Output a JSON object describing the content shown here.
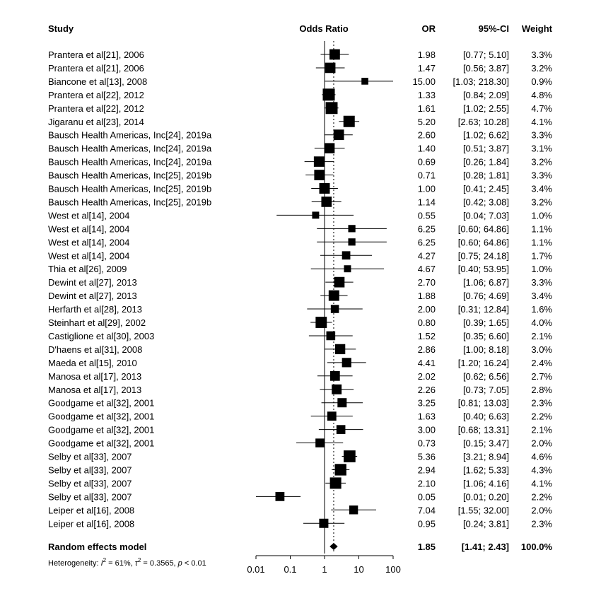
{
  "chart_data": {
    "type": "forest",
    "headers": {
      "study": "Study",
      "effect": "Odds Ratio",
      "or": "OR",
      "ci": "95%-CI",
      "weight": "Weight"
    },
    "x_scale": "log",
    "x_ticks": [
      0.01,
      0.1,
      1,
      10,
      100
    ],
    "x_tick_labels": [
      "0.01",
      "0.1",
      "1",
      "10",
      "100"
    ],
    "null_line": 1,
    "studies": [
      {
        "label": "Prantera et al[21], 2006",
        "or": 1.98,
        "lo": 0.77,
        "hi": 5.1,
        "or_text": "1.98",
        "ci_text": "[0.77;  5.10]",
        "weight": "3.3%",
        "w": 3.3
      },
      {
        "label": "Prantera et al[21], 2006",
        "or": 1.47,
        "lo": 0.56,
        "hi": 3.87,
        "or_text": "1.47",
        "ci_text": "[0.56;  3.87]",
        "weight": "3.2%",
        "w": 3.2
      },
      {
        "label": "Biancone et al[13], 2008",
        "or": 15.0,
        "lo": 1.03,
        "hi": 218.3,
        "or_text": "15.00",
        "ci_text": "[1.03; 218.30]",
        "weight": "0.9%",
        "w": 0.9
      },
      {
        "label": "Prantera et al[22], 2012",
        "or": 1.33,
        "lo": 0.84,
        "hi": 2.09,
        "or_text": "1.33",
        "ci_text": "[0.84;  2.09]",
        "weight": "4.8%",
        "w": 4.8
      },
      {
        "label": "Prantera et al[22], 2012",
        "or": 1.61,
        "lo": 1.02,
        "hi": 2.55,
        "or_text": "1.61",
        "ci_text": "[1.02;  2.55]",
        "weight": "4.7%",
        "w": 4.7
      },
      {
        "label": "Jigaranu et al[23], 2014",
        "or": 5.2,
        "lo": 2.63,
        "hi": 10.28,
        "or_text": "5.20",
        "ci_text": "[2.63; 10.28]",
        "weight": "4.1%",
        "w": 4.1
      },
      {
        "label": "Bausch Health Americas, Inc[24], 2019a",
        "or": 2.6,
        "lo": 1.02,
        "hi": 6.62,
        "or_text": "2.60",
        "ci_text": "[1.02;  6.62]",
        "weight": "3.3%",
        "w": 3.3
      },
      {
        "label": "Bausch Health Americas, Inc[24], 2019a",
        "or": 1.4,
        "lo": 0.51,
        "hi": 3.87,
        "or_text": "1.40",
        "ci_text": "[0.51;  3.87]",
        "weight": "3.1%",
        "w": 3.1
      },
      {
        "label": "Bausch Health Americas, Inc[24], 2019a",
        "or": 0.69,
        "lo": 0.26,
        "hi": 1.84,
        "or_text": "0.69",
        "ci_text": "[0.26;  1.84]",
        "weight": "3.2%",
        "w": 3.2
      },
      {
        "label": "Bausch Health Americas, Inc[25], 2019b",
        "or": 0.71,
        "lo": 0.28,
        "hi": 1.81,
        "or_text": "0.71",
        "ci_text": "[0.28;  1.81]",
        "weight": "3.3%",
        "w": 3.3
      },
      {
        "label": "Bausch Health Americas, Inc[25], 2019b",
        "or": 1.0,
        "lo": 0.41,
        "hi": 2.45,
        "or_text": "1.00",
        "ci_text": "[0.41;  2.45]",
        "weight": "3.4%",
        "w": 3.4
      },
      {
        "label": "Bausch Health Americas, Inc[25], 2019b",
        "or": 1.14,
        "lo": 0.42,
        "hi": 3.08,
        "or_text": "1.14",
        "ci_text": "[0.42;  3.08]",
        "weight": "3.2%",
        "w": 3.2
      },
      {
        "label": "West et al[14], 2004",
        "or": 0.55,
        "lo": 0.04,
        "hi": 7.03,
        "or_text": "0.55",
        "ci_text": "[0.04;  7.03]",
        "weight": "1.0%",
        "w": 1.0
      },
      {
        "label": "West et al[14], 2004",
        "or": 6.25,
        "lo": 0.6,
        "hi": 64.86,
        "or_text": "6.25",
        "ci_text": "[0.60; 64.86]",
        "weight": "1.1%",
        "w": 1.1
      },
      {
        "label": "West et al[14], 2004",
        "or": 6.25,
        "lo": 0.6,
        "hi": 64.86,
        "or_text": "6.25",
        "ci_text": "[0.60; 64.86]",
        "weight": "1.1%",
        "w": 1.1
      },
      {
        "label": "West et al[14], 2004",
        "or": 4.27,
        "lo": 0.75,
        "hi": 24.18,
        "or_text": "4.27",
        "ci_text": "[0.75; 24.18]",
        "weight": "1.7%",
        "w": 1.7
      },
      {
        "label": "Thia et al[26], 2009",
        "or": 4.67,
        "lo": 0.4,
        "hi": 53.95,
        "or_text": "4.67",
        "ci_text": "[0.40; 53.95]",
        "weight": "1.0%",
        "w": 1.0
      },
      {
        "label": "Dewint et al[27], 2013",
        "or": 2.7,
        "lo": 1.06,
        "hi": 6.87,
        "or_text": "2.70",
        "ci_text": "[1.06;  6.87]",
        "weight": "3.3%",
        "w": 3.3
      },
      {
        "label": "Dewint et al[27], 2013",
        "or": 1.88,
        "lo": 0.76,
        "hi": 4.69,
        "or_text": "1.88",
        "ci_text": "[0.76;  4.69]",
        "weight": "3.4%",
        "w": 3.4
      },
      {
        "label": "Herfarth et al[28], 2013",
        "or": 2.0,
        "lo": 0.31,
        "hi": 12.84,
        "or_text": "2.00",
        "ci_text": "[0.31; 12.84]",
        "weight": "1.6%",
        "w": 1.6
      },
      {
        "label": "Steinhart et al[29], 2002",
        "or": 0.8,
        "lo": 0.39,
        "hi": 1.65,
        "or_text": "0.80",
        "ci_text": "[0.39;  1.65]",
        "weight": "4.0%",
        "w": 4.0
      },
      {
        "label": "Castiglione et al[30], 2003",
        "or": 1.52,
        "lo": 0.35,
        "hi": 6.6,
        "or_text": "1.52",
        "ci_text": "[0.35;  6.60]",
        "weight": "2.1%",
        "w": 2.1
      },
      {
        "label": "D'haens et al[31], 2008",
        "or": 2.86,
        "lo": 1.0,
        "hi": 8.18,
        "or_text": "2.86",
        "ci_text": "[1.00;  8.18]",
        "weight": "3.0%",
        "w": 3.0
      },
      {
        "label": "Maeda et al[15], 2010",
        "or": 4.41,
        "lo": 1.2,
        "hi": 16.24,
        "or_text": "4.41",
        "ci_text": "[1.20; 16.24]",
        "weight": "2.4%",
        "w": 2.4
      },
      {
        "label": "Manosa et al[17], 2013",
        "or": 2.02,
        "lo": 0.62,
        "hi": 6.56,
        "or_text": "2.02",
        "ci_text": "[0.62;  6.56]",
        "weight": "2.7%",
        "w": 2.7
      },
      {
        "label": "Manosa et al[17], 2013",
        "or": 2.26,
        "lo": 0.73,
        "hi": 7.05,
        "or_text": "2.26",
        "ci_text": "[0.73;  7.05]",
        "weight": "2.8%",
        "w": 2.8
      },
      {
        "label": "Goodgame et al[32], 2001",
        "or": 3.25,
        "lo": 0.81,
        "hi": 13.03,
        "or_text": "3.25",
        "ci_text": "[0.81; 13.03]",
        "weight": "2.3%",
        "w": 2.3
      },
      {
        "label": "Goodgame et al[32], 2001",
        "or": 1.63,
        "lo": 0.4,
        "hi": 6.63,
        "or_text": "1.63",
        "ci_text": "[0.40;  6.63]",
        "weight": "2.2%",
        "w": 2.2
      },
      {
        "label": "Goodgame et al[32], 2001",
        "or": 3.0,
        "lo": 0.68,
        "hi": 13.31,
        "or_text": "3.00",
        "ci_text": "[0.68; 13.31]",
        "weight": "2.1%",
        "w": 2.1
      },
      {
        "label": "Goodgame et al[32], 2001",
        "or": 0.73,
        "lo": 0.15,
        "hi": 3.47,
        "or_text": "0.73",
        "ci_text": "[0.15;  3.47]",
        "weight": "2.0%",
        "w": 2.0
      },
      {
        "label": "Selby et al[33], 2007",
        "or": 5.36,
        "lo": 3.21,
        "hi": 8.94,
        "or_text": "5.36",
        "ci_text": "[3.21;  8.94]",
        "weight": "4.6%",
        "w": 4.6
      },
      {
        "label": "Selby et al[33], 2007",
        "or": 2.94,
        "lo": 1.62,
        "hi": 5.33,
        "or_text": "2.94",
        "ci_text": "[1.62;  5.33]",
        "weight": "4.3%",
        "w": 4.3
      },
      {
        "label": "Selby et al[33], 2007",
        "or": 2.1,
        "lo": 1.06,
        "hi": 4.16,
        "or_text": "2.10",
        "ci_text": "[1.06;  4.16]",
        "weight": "4.1%",
        "w": 4.1
      },
      {
        "label": "Selby et al[33], 2007",
        "or": 0.05,
        "lo": 0.01,
        "hi": 0.2,
        "or_text": "0.05",
        "ci_text": "[0.01;  0.20]",
        "weight": "2.2%",
        "w": 2.2
      },
      {
        "label": "Leiper et al[16], 2008",
        "or": 7.04,
        "lo": 1.55,
        "hi": 32.0,
        "or_text": "7.04",
        "ci_text": "[1.55; 32.00]",
        "weight": "2.0%",
        "w": 2.0
      },
      {
        "label": "Leiper et al[16], 2008",
        "or": 0.95,
        "lo": 0.24,
        "hi": 3.81,
        "or_text": "0.95",
        "ci_text": "[0.24;  3.81]",
        "weight": "2.3%",
        "w": 2.3
      }
    ],
    "pooled": {
      "label": "Random effects model",
      "or": 1.85,
      "lo": 1.41,
      "hi": 2.43,
      "or_text": "1.85",
      "ci_text": "[1.41;  2.43]",
      "weight": "100.0%"
    },
    "heterogeneity": {
      "prefix": "Heterogeneity: ",
      "i2_symbol": "I",
      "i2_sup": "2",
      "i2_value": " = 61%, ",
      "tau2_symbol": "τ",
      "tau2_sup": "2",
      "tau2_value": " = 0.3565, ",
      "p_symbol": "p",
      "p_value": " < 0.01"
    }
  }
}
